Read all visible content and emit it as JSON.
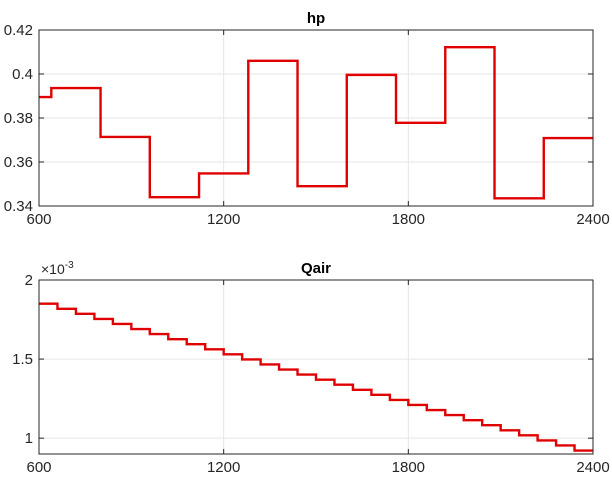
{
  "colors": {
    "line": "#e00000",
    "grid": "#e6e6e6",
    "axis": "#262626",
    "background": "#ffffff"
  },
  "chart_data": [
    {
      "type": "line",
      "step": true,
      "title": "hp",
      "xlabel": "",
      "ylabel": "",
      "xlim": [
        600,
        2400
      ],
      "ylim": [
        0.34,
        0.42
      ],
      "xticks": [
        600,
        1200,
        1800,
        2400
      ],
      "yticks": [
        0.34,
        0.36,
        0.38,
        0.4,
        0.42
      ],
      "xtick_labels": [
        "600",
        "1200",
        "1800",
        "2400"
      ],
      "ytick_labels": [
        "0.34",
        "0.36",
        "0.38",
        "0.4",
        "0.42"
      ],
      "grid": true,
      "series": [
        {
          "color": "#e00000",
          "x": [
            600,
            640,
            640,
            800,
            800,
            960,
            960,
            1120,
            1120,
            1280,
            1280,
            1440,
            1440,
            1600,
            1600,
            1760,
            1760,
            1920,
            1920,
            2080,
            2080,
            2240,
            2240,
            2400
          ],
          "y": [
            0.3895,
            0.3895,
            0.3936,
            0.3936,
            0.3714,
            0.3714,
            0.344,
            0.344,
            0.3548,
            0.3548,
            0.406,
            0.406,
            0.349,
            0.349,
            0.3996,
            0.3996,
            0.3778,
            0.3778,
            0.4122,
            0.4122,
            0.3435,
            0.3435,
            0.3709,
            0.3709
          ]
        }
      ]
    },
    {
      "type": "line",
      "step": true,
      "title": "Qair",
      "xlabel": "",
      "ylabel": "",
      "exponent_label": {
        "base": "×10",
        "power": "-3"
      },
      "xlim": [
        600,
        2400
      ],
      "ylim": [
        0.9,
        2.0
      ],
      "xticks": [
        600,
        1200,
        1800,
        2400
      ],
      "yticks": [
        1,
        1.5,
        2
      ],
      "xtick_labels": [
        "600",
        "1200",
        "1800",
        "2400"
      ],
      "ytick_labels": [
        "1",
        "1.5",
        "2"
      ],
      "grid": true,
      "series": [
        {
          "color": "#e00000",
          "steps_x": [
            600,
            660,
            720,
            780,
            840,
            900,
            960,
            1020,
            1080,
            1140,
            1200,
            1260,
            1320,
            1380,
            1440,
            1500,
            1560,
            1620,
            1680,
            1740,
            1800,
            1860,
            1920,
            1980,
            2040,
            2100,
            2160,
            2220,
            2280,
            2340,
            2400
          ],
          "steps_y": [
            1.85,
            1.818,
            1.786,
            1.754,
            1.722,
            1.69,
            1.658,
            1.626,
            1.594,
            1.562,
            1.53,
            1.498,
            1.466,
            1.434,
            1.402,
            1.37,
            1.338,
            1.306,
            1.274,
            1.242,
            1.21,
            1.178,
            1.146,
            1.114,
            1.082,
            1.05,
            1.018,
            0.986,
            0.954,
            0.922
          ]
        }
      ]
    }
  ]
}
